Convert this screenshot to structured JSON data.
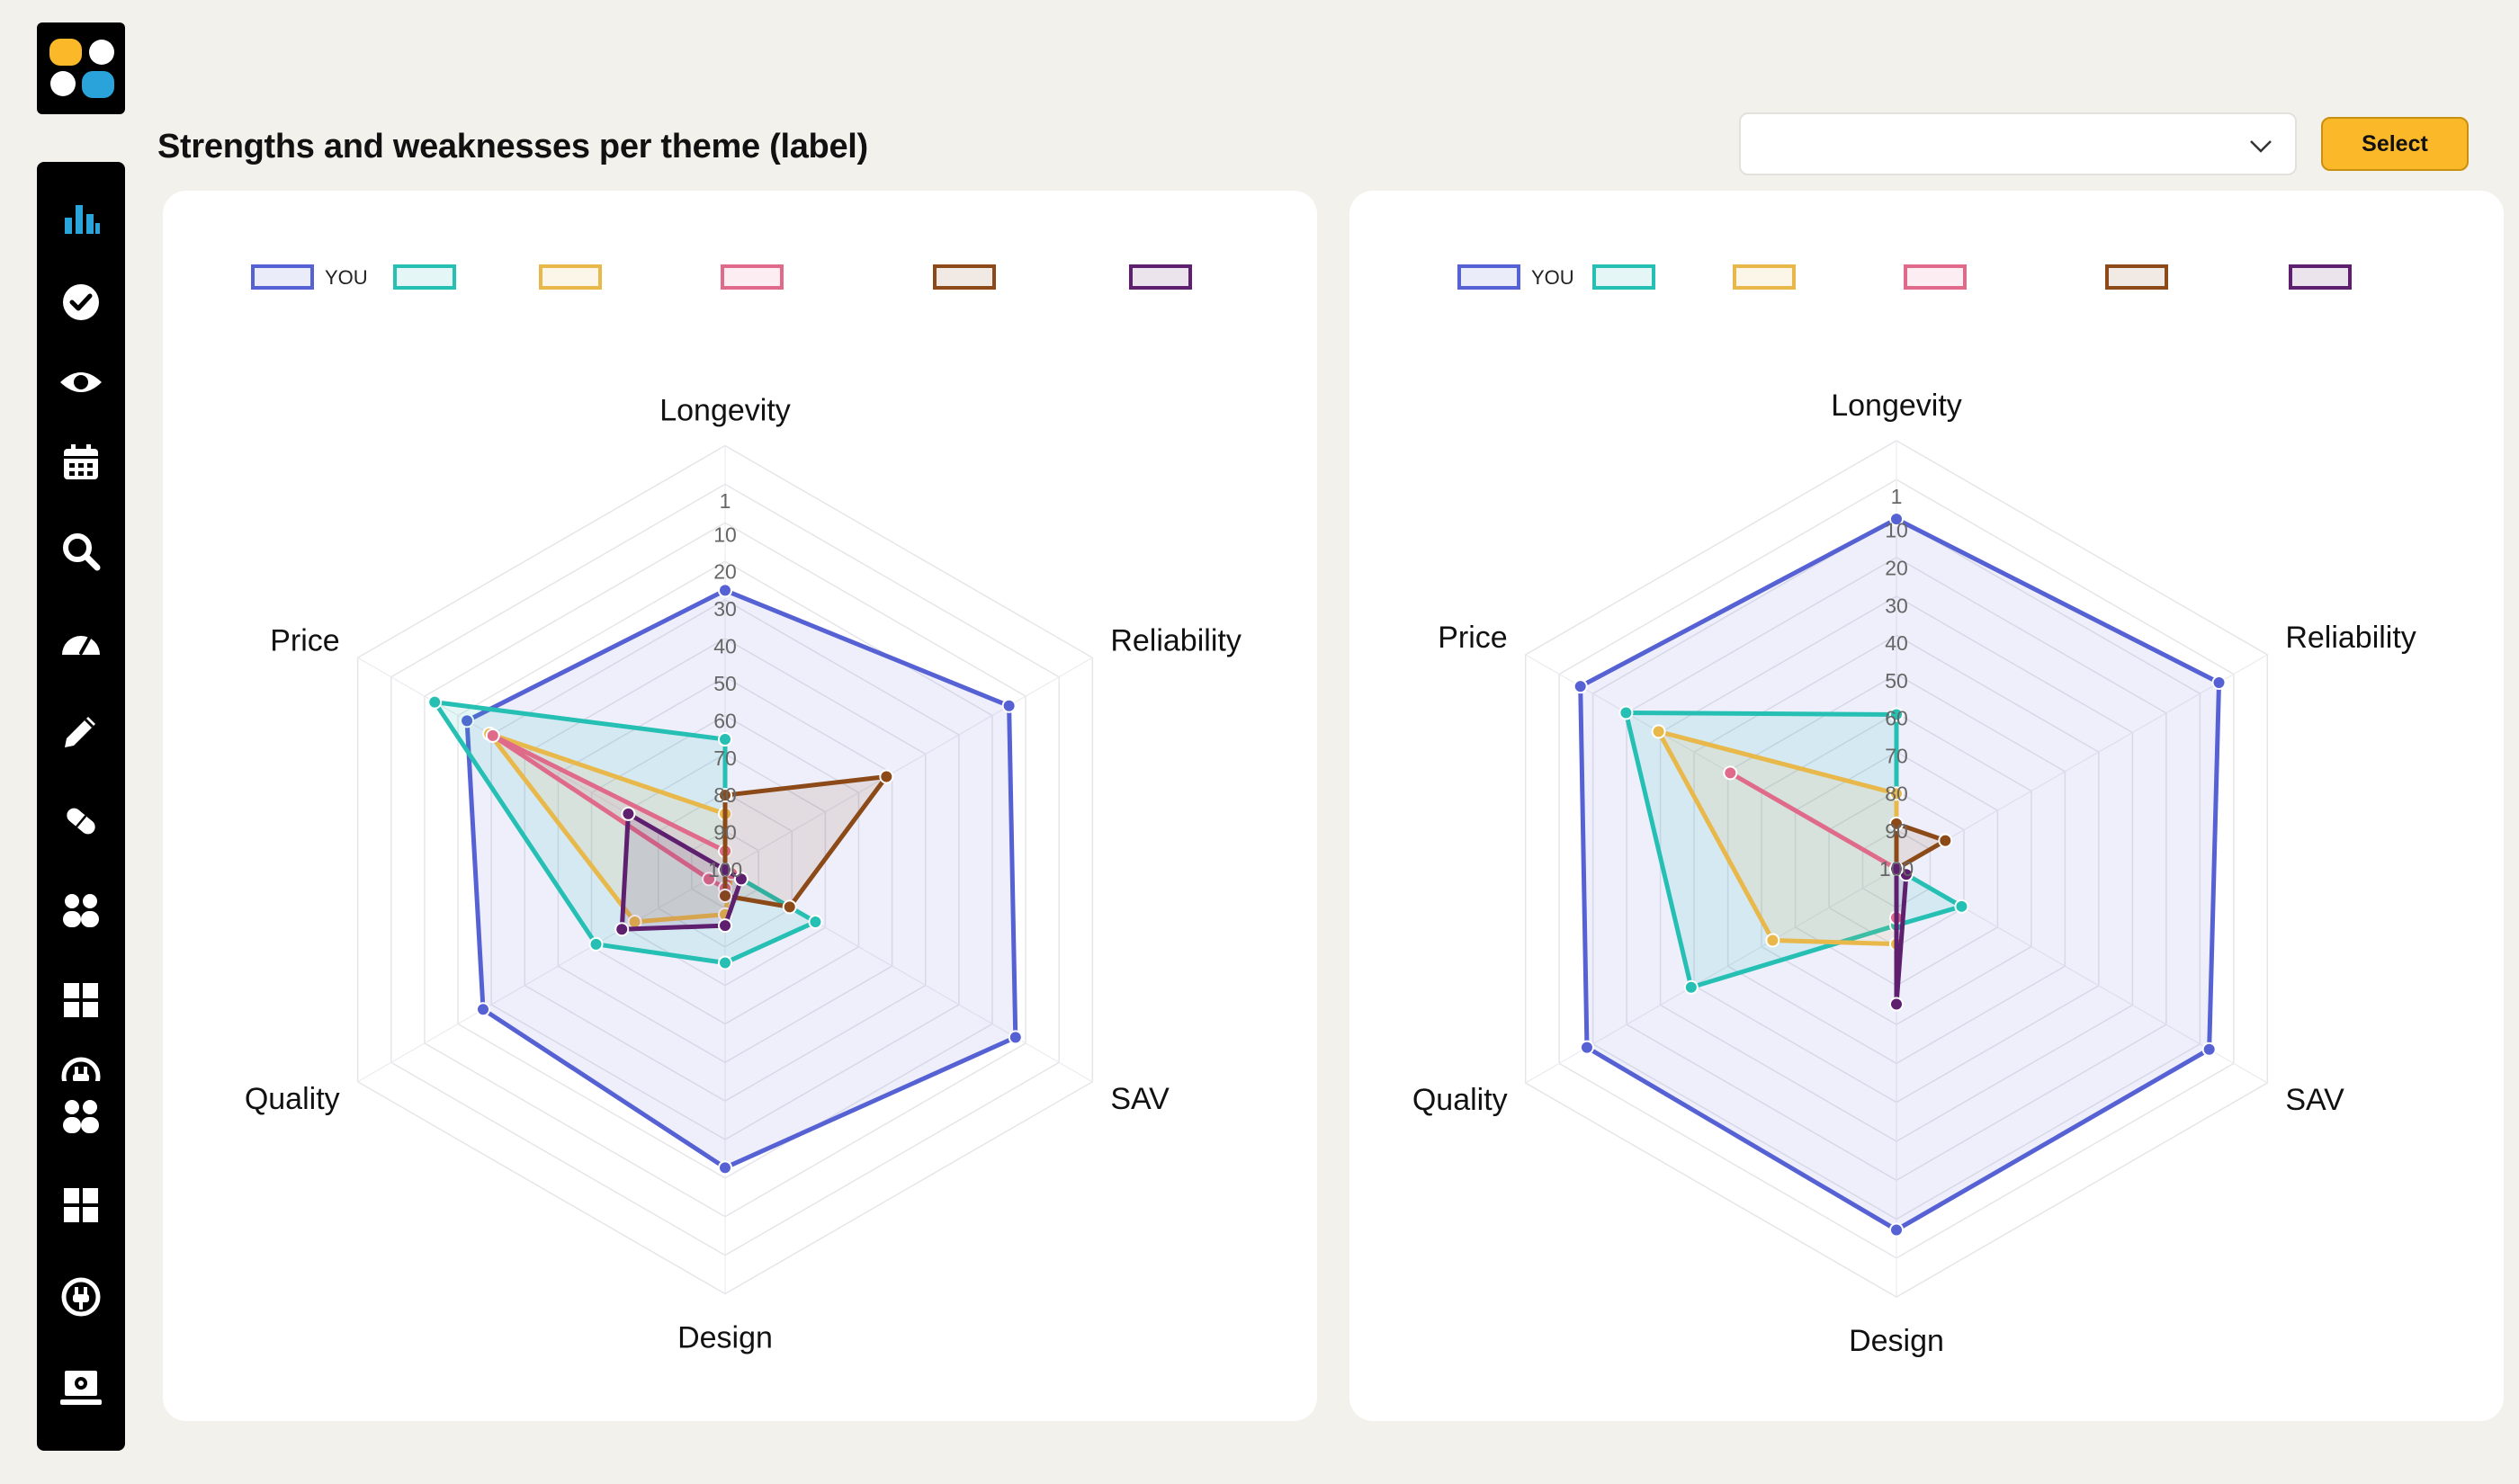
{
  "header": {
    "title": "Strengths and weaknesses per theme (label)",
    "select": {
      "value": ""
    },
    "select_button_label": "Select"
  },
  "sidebar": {
    "items": [
      {
        "icon": "bar-chart-icon"
      },
      {
        "icon": "check-circle-icon"
      },
      {
        "icon": "eye-icon"
      },
      {
        "icon": "calendar-icon"
      },
      {
        "icon": "search-icon"
      },
      {
        "icon": "gauge-icon"
      },
      {
        "icon": "pencil-icon"
      },
      {
        "icon": "capsule-icon"
      },
      {
        "icon": "group-icon"
      },
      {
        "icon": "grid-icon"
      },
      {
        "icon": "plug-icon"
      },
      {
        "icon": "group-icon"
      },
      {
        "icon": "grid-icon"
      },
      {
        "icon": "plug-icon"
      },
      {
        "icon": "settings-laptop-icon"
      }
    ]
  },
  "colors": {
    "you": "#5661d3",
    "teal": "#25bfb3",
    "yellow": "#e8b84a",
    "pink": "#e06a8a",
    "brown": "#8b4a17",
    "purple": "#5e1f6e",
    "teal_dark": "#1e6a62",
    "accent": "#fbb829"
  },
  "chart_data": [
    {
      "type": "radar",
      "axes": [
        "Longevity",
        "Reliability",
        "SAV",
        "Design",
        "Quality",
        "Price"
      ],
      "radial_ticks": [
        "1",
        "10",
        "20",
        "30",
        "40",
        "50",
        "60",
        "70",
        "80",
        "90",
        "100"
      ],
      "radial_range": [
        1,
        100
      ],
      "radial_reversed": true,
      "series": [
        {
          "name": "YOU",
          "color": "#5661d3",
          "values": [
            25,
            12,
            10,
            20,
            25,
            20
          ]
        },
        {
          "name": "",
          "color": "#25bfb3",
          "values": [
            65,
            100,
            72,
            75,
            60,
            10
          ]
        },
        {
          "name": "",
          "color": "#e8b84a",
          "values": [
            85,
            100,
            98,
            88,
            72,
            27
          ]
        },
        {
          "name": "",
          "color": "#e06a8a",
          "values": [
            95,
            100,
            98,
            95,
            95,
            28
          ]
        },
        {
          "name": "",
          "color": "#8b4a17",
          "values": [
            80,
            50,
            80,
            93,
            100,
            100
          ]
        },
        {
          "name": "",
          "color": "#5e1f6e",
          "values": [
            100,
            100,
            95,
            85,
            68,
            70
          ]
        }
      ],
      "grid": true,
      "legend": "top"
    },
    {
      "type": "radar",
      "axes": [
        "Longevity",
        "Reliability",
        "SAV",
        "Design",
        "Quality",
        "Price"
      ],
      "radial_ticks": [
        "1",
        "10",
        "20",
        "30",
        "40",
        "50",
        "60",
        "70",
        "80",
        "90",
        "100"
      ],
      "radial_range": [
        1,
        100
      ],
      "radial_reversed": true,
      "series": [
        {
          "name": "YOU",
          "color": "#5661d3",
          "values": [
            7,
            1,
            4,
            4,
            5,
            3
          ]
        },
        {
          "name": "",
          "color": "#25bfb3",
          "values": [
            59,
            100,
            80,
            85,
            37,
            17
          ]
        },
        {
          "name": "",
          "color": "#e8b84a",
          "values": [
            80,
            100,
            100,
            80,
            62,
            27
          ]
        },
        {
          "name": "",
          "color": "#e06a8a",
          "values": [
            100,
            100,
            100,
            87,
            100,
            49
          ]
        },
        {
          "name": "",
          "color": "#8b4a17",
          "values": [
            88,
            85,
            100,
            100,
            100,
            100
          ]
        },
        {
          "name": "",
          "color": "#5e1f6e",
          "values": [
            100,
            100,
            97,
            64,
            100,
            100
          ]
        }
      ],
      "grid": true,
      "legend": "top"
    }
  ]
}
